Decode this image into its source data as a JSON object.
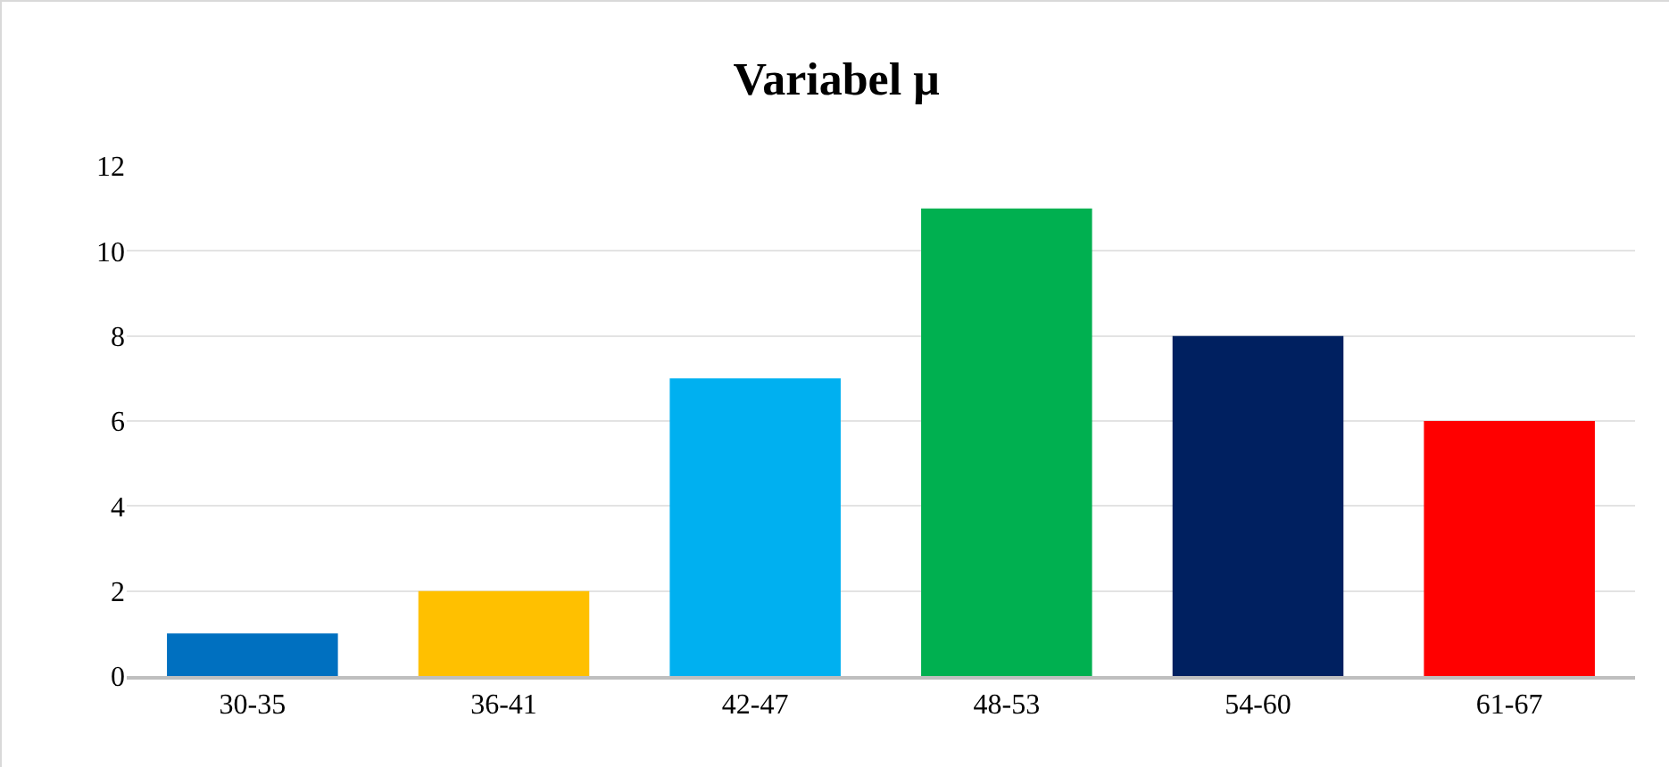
{
  "chart_data": {
    "type": "bar",
    "title": "Variabel μ",
    "categories": [
      "30-35",
      "36-41",
      "42-47",
      "48-53",
      "54-60",
      "61-67"
    ],
    "values": [
      1,
      2,
      7,
      11,
      8,
      6
    ],
    "colors": [
      "#0070c0",
      "#ffc000",
      "#00b0f0",
      "#00b050",
      "#002060",
      "#ff0000"
    ],
    "ylim": [
      0,
      12
    ],
    "yticks": [
      0,
      2,
      4,
      6,
      8,
      10,
      12
    ],
    "grid": "y"
  }
}
